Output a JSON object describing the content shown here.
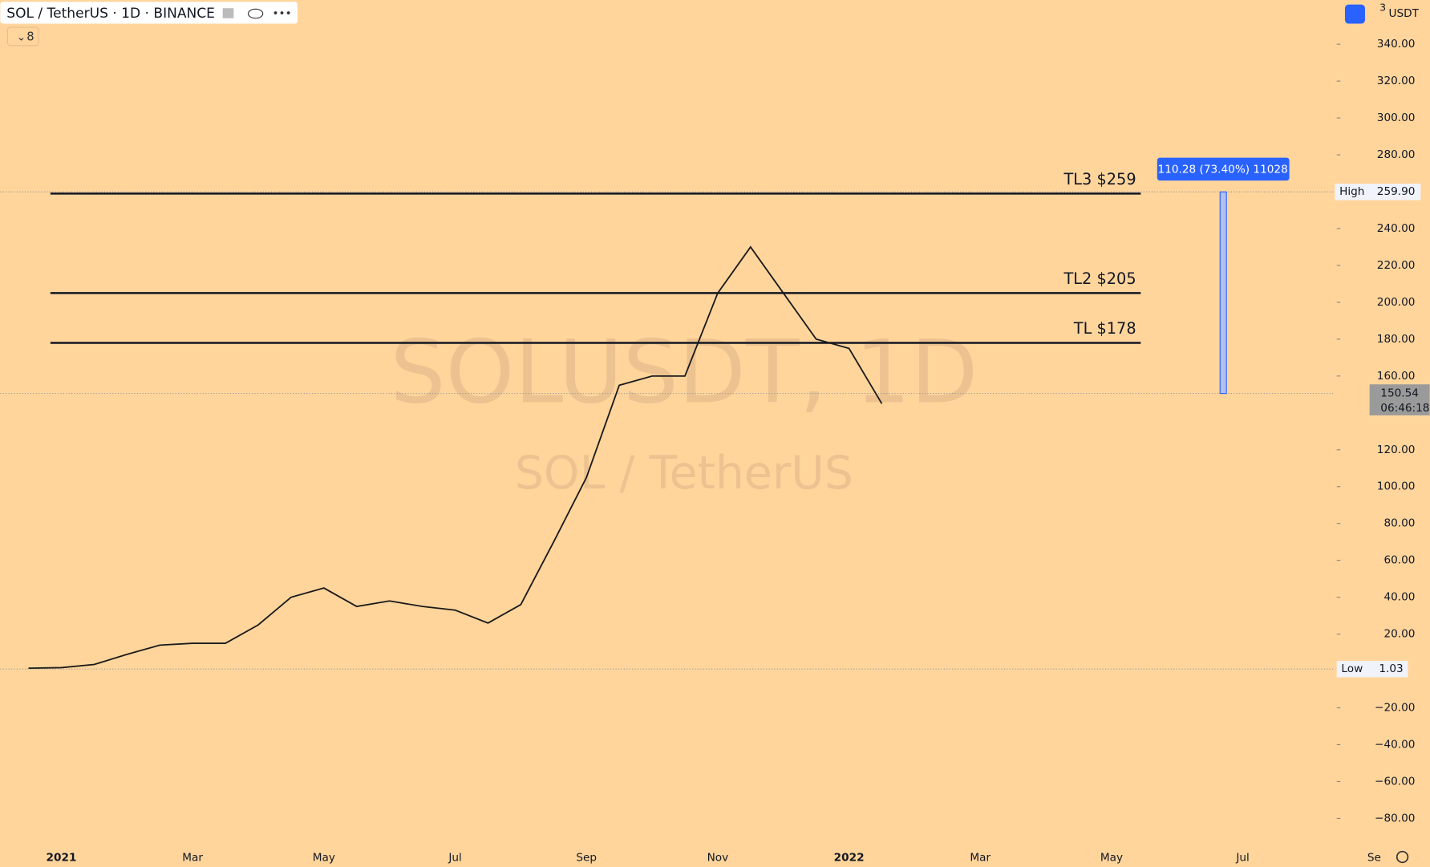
{
  "header": {
    "symbol": "SOL / TetherUS · 1D · BINANCE",
    "indicator_count": "8"
  },
  "chart_data": {
    "type": "line",
    "categories": [
      null,
      "2021",
      null,
      null,
      null,
      "Mar",
      null,
      null,
      null,
      "May",
      null,
      null,
      null,
      "Jul",
      null,
      null,
      null,
      "Sep",
      null,
      null,
      null,
      "Nov",
      null,
      null,
      null,
      "2022",
      null,
      null,
      null,
      "Mar",
      null,
      null,
      null,
      "May",
      null,
      null,
      null,
      "Jul",
      null,
      null,
      null,
      "Se"
    ],
    "values": [
      1.5,
      1.8,
      3.5,
      9,
      14,
      15,
      15,
      25,
      40,
      45,
      35,
      38,
      35,
      33,
      26,
      36,
      70,
      105,
      155,
      160,
      160,
      205,
      230,
      205,
      180,
      175,
      145,
      null,
      null,
      null,
      null,
      null,
      null,
      null,
      null,
      null,
      null,
      null,
      null,
      null,
      null,
      null
    ],
    "color": "#1a1a1a",
    "ylim": [
      -93,
      364
    ],
    "yticks": [
      {
        "value": 340,
        "label": "340.00"
      },
      {
        "value": 320,
        "label": "320.00"
      },
      {
        "value": 300,
        "label": "300.00"
      },
      {
        "value": 280,
        "label": "280.00"
      },
      {
        "value": 240,
        "label": "240.00"
      },
      {
        "value": 220,
        "label": "220.00"
      },
      {
        "value": 200,
        "label": "200.00"
      },
      {
        "value": 180,
        "label": "180.00"
      },
      {
        "value": 160,
        "label": "160.00"
      },
      {
        "value": 120,
        "label": "120.00"
      },
      {
        "value": 100,
        "label": "100.00"
      },
      {
        "value": 80,
        "label": "80.00"
      },
      {
        "value": 60,
        "label": "60.00"
      },
      {
        "value": 40,
        "label": "40.00"
      },
      {
        "value": 20,
        "label": "20.00"
      },
      {
        "value": -20,
        "label": "−20.00"
      },
      {
        "value": -40,
        "label": "−40.00"
      },
      {
        "value": -60,
        "label": "−60.00"
      },
      {
        "value": -80,
        "label": "−80.00"
      }
    ],
    "currency": "USDT",
    "scale_label": "3",
    "levels": [
      {
        "label": "TL3 $259",
        "value": 259
      },
      {
        "label": "TL2 $205",
        "value": 205
      },
      {
        "label": "TL $178",
        "value": 178
      }
    ],
    "high": {
      "label": "High",
      "value": 259.9,
      "value_label": "259.90"
    },
    "low": {
      "label": "Low",
      "value": 1.03
    },
    "last": {
      "value": 150.54,
      "value_label": "150.54",
      "countdown": "06:46:18"
    },
    "measure": {
      "label": "110.28 (73.40%) 11028"
    },
    "watermark": [
      "SOLUSDT, 1D",
      "SOL / TetherUS"
    ]
  }
}
